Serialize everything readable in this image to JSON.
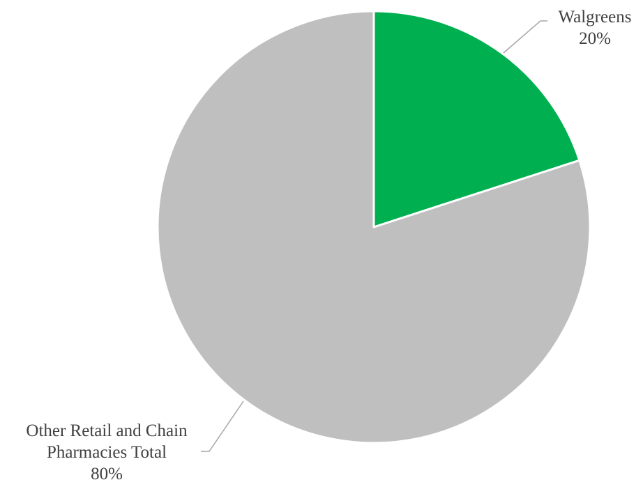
{
  "chart_data": {
    "type": "pie",
    "title": "",
    "start_angle_deg": 0,
    "direction": "clockwise",
    "slices": [
      {
        "name": "Walgreens",
        "value": 20,
        "label_lines": [
          "Walgreens"
        ],
        "value_label": "20%",
        "color": "#00B050"
      },
      {
        "name": "Other Retail and Chain Pharmacies Total",
        "value": 80,
        "label_lines": [
          "Other Retail and Chain",
          "Pharmacies Total"
        ],
        "value_label": "80%",
        "color": "#BFBFBF"
      }
    ],
    "legend": "none",
    "slice_border_color": "#FFFFFF",
    "leader_line_color": "#A6A6A6"
  }
}
